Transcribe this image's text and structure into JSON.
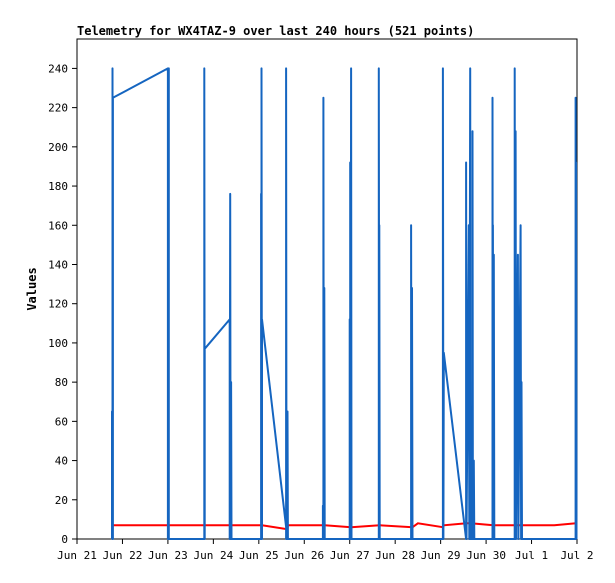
{
  "chart_data": {
    "type": "line",
    "title": "Telemetry for WX4TAZ-9 over last 240 hours (521 points)",
    "xlabel": "",
    "ylabel": "Values",
    "x_unit": "days",
    "x_ticks": [
      "Jun 21",
      "Jun 22",
      "Jun 23",
      "Jun 24",
      "Jun 25",
      "Jun 26",
      "Jun 27",
      "Jun 28",
      "Jun 29",
      "Jun 30",
      "Jul 1",
      "Jul 2"
    ],
    "xlim": [
      0,
      11
    ],
    "ylim": [
      0,
      255
    ],
    "y_ticks": [
      0,
      20,
      40,
      60,
      80,
      100,
      120,
      140,
      160,
      180,
      200,
      220,
      240
    ],
    "grid": false,
    "legend": "none",
    "colors": {
      "series1": "#1565c0",
      "series2": "#ff0000"
    },
    "series": [
      {
        "color": "#1565c0",
        "points": [
          [
            0.77,
            0
          ],
          [
            0.77,
            65
          ],
          [
            0.78,
            0
          ],
          [
            0.78,
            240
          ],
          [
            0.79,
            0
          ],
          [
            0.79,
            225
          ],
          [
            2.0,
            240
          ],
          [
            2.0,
            0
          ],
          [
            2.01,
            192
          ],
          [
            2.02,
            240
          ],
          [
            2.02,
            0
          ],
          [
            2.8,
            0
          ],
          [
            2.8,
            240
          ],
          [
            2.81,
            0
          ],
          [
            2.81,
            97
          ],
          [
            3.36,
            112
          ],
          [
            3.36,
            0
          ],
          [
            3.37,
            176
          ],
          [
            3.38,
            0
          ],
          [
            3.39,
            80
          ],
          [
            3.4,
            0
          ],
          [
            4.05,
            0
          ],
          [
            4.05,
            176
          ],
          [
            4.06,
            0
          ],
          [
            4.06,
            240
          ],
          [
            4.07,
            0
          ],
          [
            4.07,
            112
          ],
          [
            4.63,
            0
          ],
          [
            4.63,
            65
          ],
          [
            4.64,
            0
          ],
          [
            4.6,
            0
          ],
          [
            4.6,
            240
          ],
          [
            4.61,
            0
          ],
          [
            5.41,
            0
          ],
          [
            5.41,
            17
          ],
          [
            5.42,
            0
          ],
          [
            5.42,
            225
          ],
          [
            5.43,
            0
          ],
          [
            5.44,
            128
          ],
          [
            5.45,
            0
          ],
          [
            6.0,
            0
          ],
          [
            6.0,
            112
          ],
          [
            6.01,
            0
          ],
          [
            6.01,
            192
          ],
          [
            6.02,
            0
          ],
          [
            6.03,
            240
          ],
          [
            6.04,
            0
          ],
          [
            6.64,
            0
          ],
          [
            6.64,
            240
          ],
          [
            6.65,
            0
          ],
          [
            6.65,
            160
          ],
          [
            6.66,
            0
          ],
          [
            7.35,
            0
          ],
          [
            7.35,
            160
          ],
          [
            7.36,
            0
          ],
          [
            7.37,
            128
          ],
          [
            7.38,
            0
          ],
          [
            8.05,
            0
          ],
          [
            8.05,
            240
          ],
          [
            8.06,
            0
          ],
          [
            8.07,
            95
          ],
          [
            8.56,
            0
          ],
          [
            8.56,
            192
          ],
          [
            8.57,
            0
          ],
          [
            8.62,
            160
          ],
          [
            8.63,
            0
          ],
          [
            8.65,
            240
          ],
          [
            8.66,
            0
          ],
          [
            8.7,
            0
          ],
          [
            8.7,
            208
          ],
          [
            8.71,
            0
          ],
          [
            8.73,
            40
          ],
          [
            8.74,
            0
          ],
          [
            9.14,
            0
          ],
          [
            9.14,
            225
          ],
          [
            9.15,
            0
          ],
          [
            9.15,
            160
          ],
          [
            9.16,
            0
          ],
          [
            9.17,
            145
          ],
          [
            9.18,
            0
          ],
          [
            9.63,
            0
          ],
          [
            9.63,
            240
          ],
          [
            9.64,
            0
          ],
          [
            9.65,
            208
          ],
          [
            9.66,
            0
          ],
          [
            9.7,
            145
          ],
          [
            9.71,
            0
          ],
          [
            9.76,
            160
          ],
          [
            9.77,
            0
          ],
          [
            9.78,
            80
          ],
          [
            9.79,
            0
          ],
          [
            10.97,
            0
          ],
          [
            10.97,
            225
          ],
          [
            10.98,
            0
          ],
          [
            10.98,
            192
          ],
          [
            10.99,
            0
          ]
        ]
      },
      {
        "color": "#1565c0",
        "points": [
          [
            11.0,
            0
          ],
          [
            11.0,
            0
          ]
        ]
      }
    ]
  }
}
